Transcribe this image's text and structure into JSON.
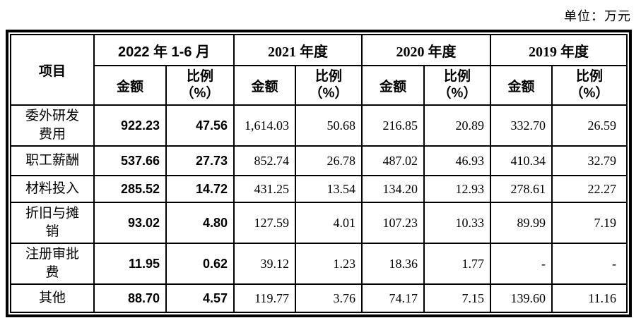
{
  "unit_label": "单位：万元",
  "colors": {
    "text": "#000000",
    "border": "#000000",
    "background": "#ffffff"
  },
  "table": {
    "item_header": "项目",
    "amount_label": "金额",
    "ratio_label": "比例",
    "ratio_unit": "（%）",
    "year_groups": [
      "2022 年 1-6 月",
      "2021 年度",
      "2020 年度",
      "2019 年度"
    ],
    "rows": [
      {
        "label": "委外研发费用",
        "values": [
          "922.23",
          "47.56",
          "1,614.03",
          "50.68",
          "216.85",
          "20.89",
          "332.70",
          "26.59"
        ]
      },
      {
        "label": "职工薪酬",
        "values": [
          "537.66",
          "27.73",
          "852.74",
          "26.78",
          "487.02",
          "46.93",
          "410.34",
          "32.79"
        ]
      },
      {
        "label": "材料投入",
        "values": [
          "285.52",
          "14.72",
          "431.25",
          "13.54",
          "134.20",
          "12.93",
          "278.61",
          "22.27"
        ]
      },
      {
        "label": "折旧与摊销",
        "values": [
          "93.02",
          "4.80",
          "127.59",
          "4.01",
          "107.23",
          "10.33",
          "89.99",
          "7.19"
        ]
      },
      {
        "label": "注册审批费",
        "values": [
          "11.95",
          "0.62",
          "39.12",
          "1.23",
          "18.36",
          "1.77",
          "-",
          "-"
        ]
      },
      {
        "label": "其他",
        "values": [
          "88.70",
          "4.57",
          "119.77",
          "3.76",
          "74.17",
          "7.15",
          "139.60",
          "11.16"
        ]
      }
    ]
  }
}
